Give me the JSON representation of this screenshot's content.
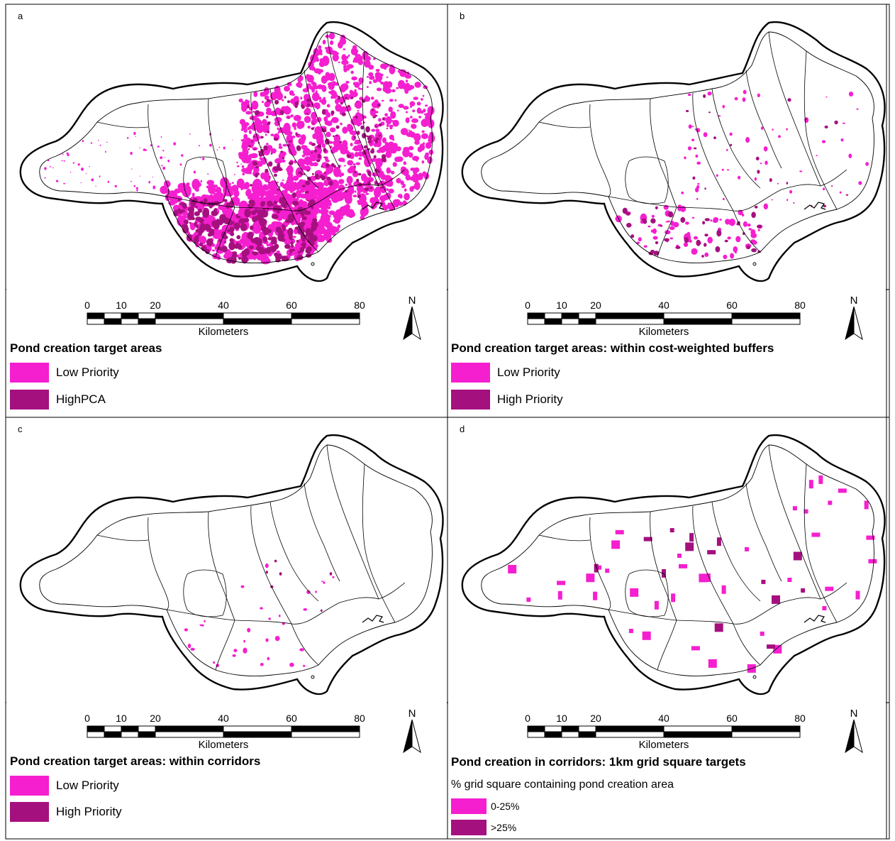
{
  "colors": {
    "low": "#f51fcf",
    "high": "#a5107f",
    "outline": "#000000",
    "background": "#ffffff"
  },
  "scalebar": {
    "ticks": [
      "0",
      "10",
      "20",
      "40",
      "60",
      "80"
    ],
    "unit": "Kilometers"
  },
  "north_label": "N",
  "panels": [
    {
      "id": "a",
      "letter": "a",
      "legend_title": "Pond creation target areas",
      "legend_items": [
        {
          "label": "Low Priority",
          "color": "#f51fcf"
        },
        {
          "label": "HighPCA",
          "color": "#a5107f"
        }
      ]
    },
    {
      "id": "b",
      "letter": "b",
      "legend_title": "Pond creation target areas: within cost-weighted buffers",
      "legend_items": [
        {
          "label": "Low Priority",
          "color": "#f51fcf"
        },
        {
          "label": "High Priority",
          "color": "#a5107f"
        }
      ]
    },
    {
      "id": "c",
      "letter": "c",
      "legend_title": "Pond creation target areas: within corridors",
      "legend_items": [
        {
          "label": "Low Priority",
          "color": "#f51fcf"
        },
        {
          "label": "High Priority",
          "color": "#a5107f"
        }
      ]
    },
    {
      "id": "d",
      "letter": "d",
      "legend_title": "Pond creation in corridors: 1km grid square targets",
      "legend_subtitle": "% grid square containing pond creation area",
      "legend_items": [
        {
          "label": "0-25%",
          "color": "#f51fcf"
        },
        {
          "label": ">25%",
          "color": "#a5107f"
        }
      ]
    }
  ]
}
